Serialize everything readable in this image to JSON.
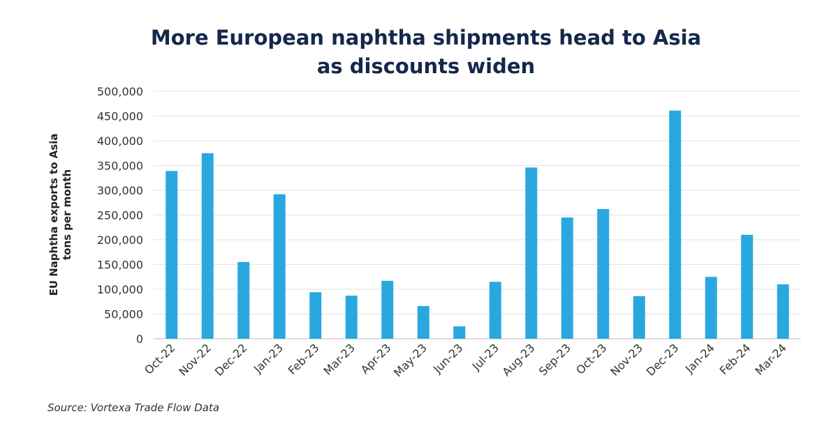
{
  "chart_data": {
    "type": "bar",
    "title_line1": "More European naphtha shipments head to Asia",
    "title_line2": "as discounts widen",
    "ylabel_line1": "EU Naphtha exports to Asia",
    "ylabel_line2": "tons per month",
    "xlabel": "",
    "ylim": [
      0,
      500000
    ],
    "yticks": [
      "0",
      "50,000",
      "100,000",
      "150,000",
      "200,000",
      "250,000",
      "300,000",
      "350,000",
      "400,000",
      "450,000",
      "500,000"
    ],
    "grid": true,
    "categories": [
      "Oct-22",
      "Nov-22",
      "Dec-22",
      "Jan-23",
      "Feb-23",
      "Mar-23",
      "Apr-23",
      "May-23",
      "Jun-23",
      "Jul-23",
      "Aug-23",
      "Sep-23",
      "Oct-23",
      "Nov-23",
      "Dec-23",
      "Jan-24",
      "Feb-24",
      "Mar-24"
    ],
    "values": [
      339000,
      375000,
      155000,
      292000,
      94000,
      87000,
      117000,
      66000,
      25000,
      115000,
      346000,
      245000,
      262000,
      86000,
      461000,
      125000,
      210000,
      110000
    ],
    "bar_color": "#29a8e0",
    "source": "Source: Vortexa Trade Flow Data"
  }
}
